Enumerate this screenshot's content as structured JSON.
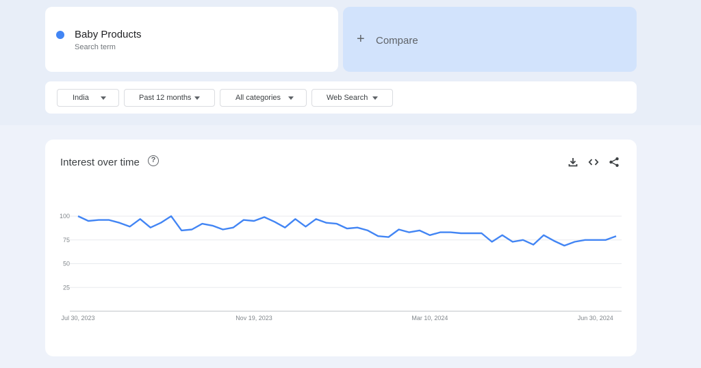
{
  "search_term": {
    "name": "Baby Products",
    "subtitle": "Search term",
    "color": "#4285f4"
  },
  "compare": {
    "plus": "+",
    "label": "Compare"
  },
  "filters": [
    {
      "label": "India"
    },
    {
      "label": "Past 12 months"
    },
    {
      "label": "All categories"
    },
    {
      "label": "Web Search"
    }
  ],
  "chart": {
    "title": "Interest over time",
    "help_icon": "?",
    "tools": [
      "download-icon",
      "embed-code-icon",
      "share-icon"
    ]
  },
  "chart_data": {
    "type": "line",
    "title": "Interest over time",
    "xlabel": "",
    "ylabel": "",
    "ylim": [
      0,
      100
    ],
    "yticks": [
      25,
      50,
      75,
      100
    ],
    "x_tick_labels": [
      "Jul 30, 2023",
      "Nov 19, 2023",
      "Mar 10, 2024",
      "Jun 30, 2024"
    ],
    "grid": true,
    "series": [
      {
        "name": "Baby Products",
        "color": "#4285f4",
        "values": [
          100,
          95,
          96,
          96,
          93,
          89,
          97,
          88,
          93,
          100,
          85,
          86,
          92,
          90,
          86,
          88,
          96,
          95,
          99,
          94,
          88,
          97,
          89,
          97,
          93,
          92,
          87,
          88,
          85,
          79,
          78,
          86,
          83,
          85,
          80,
          83,
          83,
          82,
          82,
          82,
          73,
          80,
          73,
          75,
          70,
          80,
          74,
          69,
          73,
          75,
          75,
          75,
          79
        ]
      }
    ]
  }
}
